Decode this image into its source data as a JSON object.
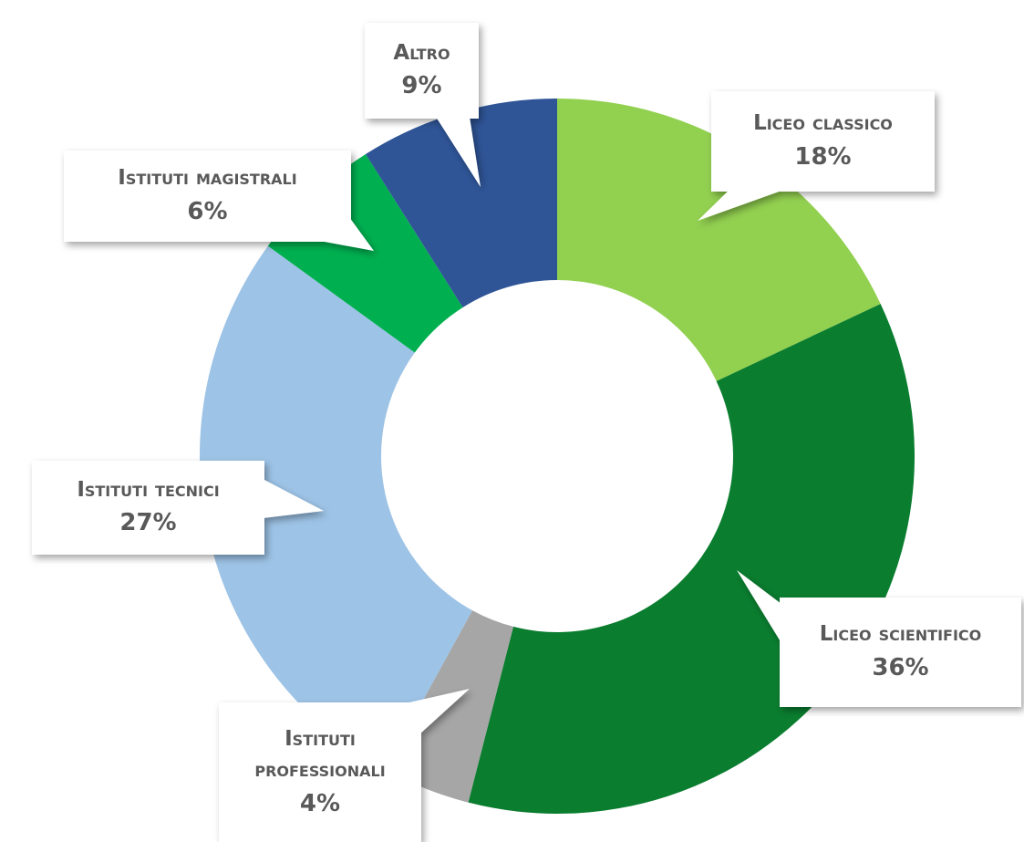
{
  "chart_data": {
    "type": "donut",
    "categories": [
      "Liceo classico",
      "Liceo scientifico",
      "Istituti professionali",
      "Istituti tecnici",
      "Istituti magistrali",
      "Altro"
    ],
    "values": [
      18,
      36,
      4,
      27,
      6,
      9
    ],
    "value_labels": [
      "18%",
      "36%",
      "4%",
      "27%",
      "6%",
      "9%"
    ],
    "colors": [
      "#92d050",
      "#0a7d2f",
      "#a6a6a6",
      "#9dc3e6",
      "#00b050",
      "#2f5597"
    ]
  }
}
